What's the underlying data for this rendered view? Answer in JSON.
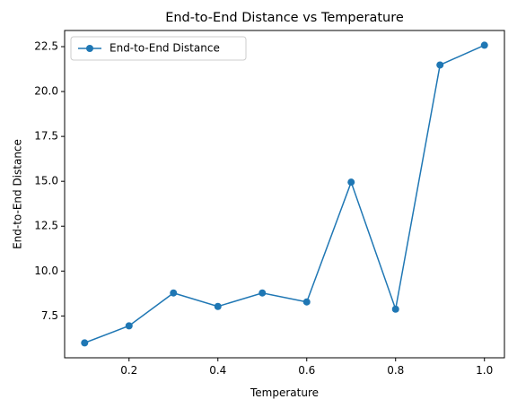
{
  "chart_data": {
    "type": "line",
    "title": "End-to-End Distance vs Temperature",
    "xlabel": "Temperature",
    "ylabel": "End-to-End Distance",
    "x": [
      0.1,
      0.2,
      0.3,
      0.4,
      0.5,
      0.6,
      0.7,
      0.8,
      0.9,
      1.0
    ],
    "series": [
      {
        "name": "End-to-End Distance",
        "values": [
          6.0,
          6.95,
          8.78,
          8.03,
          8.78,
          8.28,
          14.95,
          7.88,
          21.48,
          22.58
        ],
        "color": "#1f77b4",
        "marker": "circle"
      }
    ],
    "xlim": [
      0.055,
      1.045
    ],
    "ylim": [
      5.17,
      23.4
    ],
    "xticks": [
      0.2,
      0.4,
      0.6,
      0.8,
      1.0
    ],
    "xtick_labels": [
      "0.2",
      "0.4",
      "0.6",
      "0.8",
      "1.0"
    ],
    "yticks": [
      7.5,
      10.0,
      12.5,
      15.0,
      17.5,
      20.0,
      22.5
    ],
    "ytick_labels": [
      "7.5",
      "10.0",
      "12.5",
      "15.0",
      "17.5",
      "20.0",
      "22.5"
    ],
    "grid": false,
    "legend_position": "upper-left"
  }
}
